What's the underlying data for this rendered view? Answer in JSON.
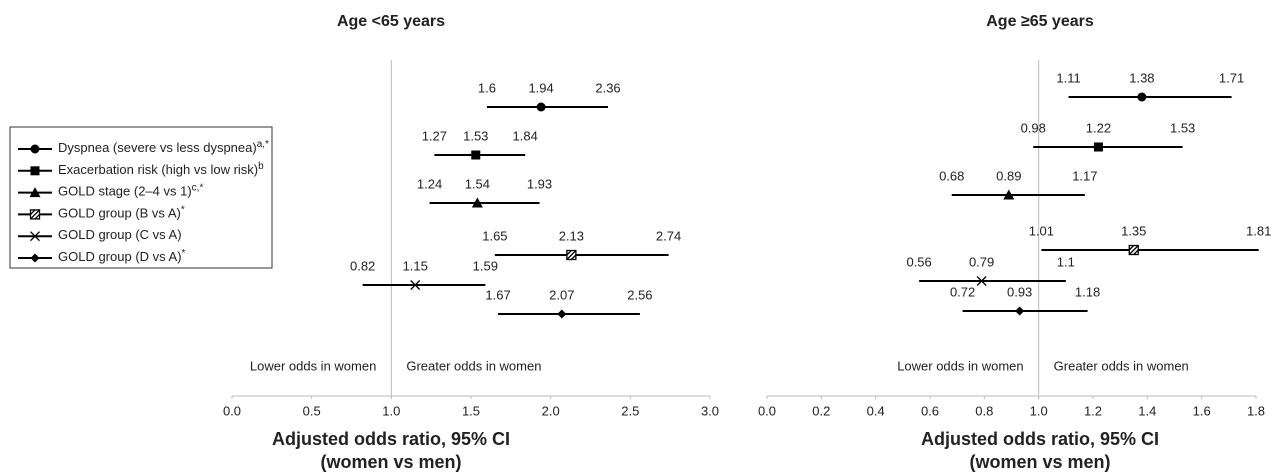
{
  "chart_data": [
    {
      "type": "forest",
      "title": "Age <65 years",
      "xlabel": [
        "Adjusted odds ratio, 95% CI",
        "(women vs men)"
      ],
      "xlim": [
        0,
        3
      ],
      "xticks": [
        {
          "value": 0,
          "label": "0.0"
        },
        0.5,
        {
          "value": 1,
          "label": "1.0"
        },
        1.5,
        {
          "value": 2,
          "label": "2.0"
        },
        2.5,
        {
          "value": 3,
          "label": "3.0"
        }
      ],
      "reference_line": 1,
      "annotations": [
        "Lower odds in women",
        "Greater odds in women"
      ],
      "color": "#000000",
      "series": [
        {
          "name": "Dyspnea (severe vs less dyspnea)",
          "superscript": "a,*",
          "marker": "circle",
          "values": [
            1.94
          ],
          "lower": [
            1.6
          ],
          "upper": [
            2.36
          ]
        },
        {
          "name": "Exacerbation risk (high vs low risk)",
          "superscript": "b",
          "marker": "square",
          "values": [
            1.53
          ],
          "lower": [
            1.27
          ],
          "upper": [
            1.84
          ]
        },
        {
          "name": "GOLD stage (2–4 vs 1)",
          "superscript": "c,*",
          "marker": "triangle",
          "values": [
            1.54
          ],
          "lower": [
            1.24
          ],
          "upper": [
            1.93
          ]
        },
        {
          "name": "GOLD group (B vs A)",
          "superscript": "*",
          "marker": "hatched-square",
          "values": [
            2.13
          ],
          "lower": [
            1.65
          ],
          "upper": [
            2.74
          ]
        },
        {
          "name": "GOLD group (C vs A)",
          "marker": "asterisk",
          "values": [
            1.15
          ],
          "lower": [
            0.82
          ],
          "upper": [
            1.59
          ]
        },
        {
          "name": "GOLD group (D vs A)",
          "superscript": "*",
          "marker": "diamond",
          "values": [
            2.07
          ],
          "lower": [
            1.67
          ],
          "upper": [
            2.56
          ]
        }
      ]
    },
    {
      "type": "forest",
      "title": "Age ≥65 years",
      "xlabel": [
        "Adjusted odds ratio, 95% CI",
        "(women vs men)"
      ],
      "xlim": [
        0,
        1.8
      ],
      "xticks": [
        {
          "value": 0,
          "label": "0.0"
        },
        0.2,
        0.4,
        0.6,
        0.8,
        {
          "value": 1,
          "label": "1.0"
        },
        1.2,
        1.4,
        1.6,
        1.8
      ],
      "reference_line": 1,
      "annotations": [
        "Lower odds in women",
        "Greater odds in women"
      ],
      "color": "#000000",
      "series": [
        {
          "marker": "circle",
          "values": [
            1.38
          ],
          "lower": [
            1.11
          ],
          "upper": [
            1.71
          ]
        },
        {
          "marker": "square",
          "values": [
            1.22
          ],
          "lower": [
            0.98
          ],
          "upper": [
            1.53
          ]
        },
        {
          "marker": "triangle",
          "values": [
            0.89
          ],
          "lower": [
            0.68
          ],
          "upper": [
            1.17
          ]
        },
        {
          "marker": "hatched-square",
          "values": [
            1.35
          ],
          "lower": [
            1.01
          ],
          "upper": [
            1.81
          ]
        },
        {
          "marker": "asterisk",
          "values": [
            0.79
          ],
          "lower": [
            0.56
          ],
          "upper": [
            1.1
          ]
        },
        {
          "marker": "diamond",
          "values": [
            0.93
          ],
          "lower": [
            0.72
          ],
          "upper": [
            1.18
          ]
        }
      ]
    }
  ]
}
